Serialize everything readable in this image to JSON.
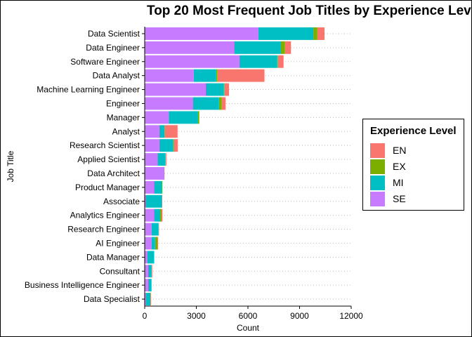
{
  "chart_data": {
    "type": "bar",
    "orientation": "horizontal",
    "stacked": true,
    "title": "Top 20 Most Frequent Job Titles by Experience Lev",
    "xlabel": "Count",
    "ylabel": "Job Title",
    "xlim": [
      0,
      12000
    ],
    "x_ticks": [
      "0",
      "3000",
      "6000",
      "9000",
      "12000"
    ],
    "grid": "dotted horizontal",
    "legend_position": "right",
    "legend_title": "Experience Level",
    "categories": [
      "Data Scientist",
      "Data Engineer",
      "Software Engineer",
      "Data Analyst",
      "Machine Learning Engineer",
      "Engineer",
      "Manager",
      "Analyst",
      "Research Scientist",
      "Applied Scientist",
      "Data Architect",
      "Product Manager",
      "Associate",
      "Analytics Engineer",
      "Research Engineer",
      "AI Engineer",
      "Data Manager",
      "Consultant",
      "Business Intelligence Engineer",
      "Data Specialist"
    ],
    "series": [
      {
        "name": "SE",
        "color": "#C77CFF",
        "values": [
          6600,
          5200,
          5500,
          2850,
          3550,
          2800,
          1400,
          850,
          850,
          750,
          1100,
          550,
          50,
          550,
          400,
          400,
          150,
          200,
          200,
          80
        ]
      },
      {
        "name": "MI",
        "color": "#00BFC4",
        "values": [
          3200,
          2700,
          2200,
          1300,
          1050,
          1500,
          1700,
          300,
          800,
          450,
          30,
          450,
          950,
          350,
          400,
          200,
          380,
          200,
          170,
          250
        ]
      },
      {
        "name": "EX",
        "color": "#7CAE00",
        "values": [
          200,
          250,
          20,
          60,
          20,
          150,
          50,
          10,
          20,
          10,
          10,
          20,
          0,
          80,
          10,
          150,
          10,
          10,
          10,
          10
        ]
      },
      {
        "name": "EN",
        "color": "#F8766D",
        "values": [
          450,
          350,
          350,
          2750,
          280,
          250,
          30,
          750,
          250,
          50,
          10,
          10,
          20,
          50,
          20,
          30,
          20,
          30,
          30,
          30
        ]
      }
    ]
  }
}
